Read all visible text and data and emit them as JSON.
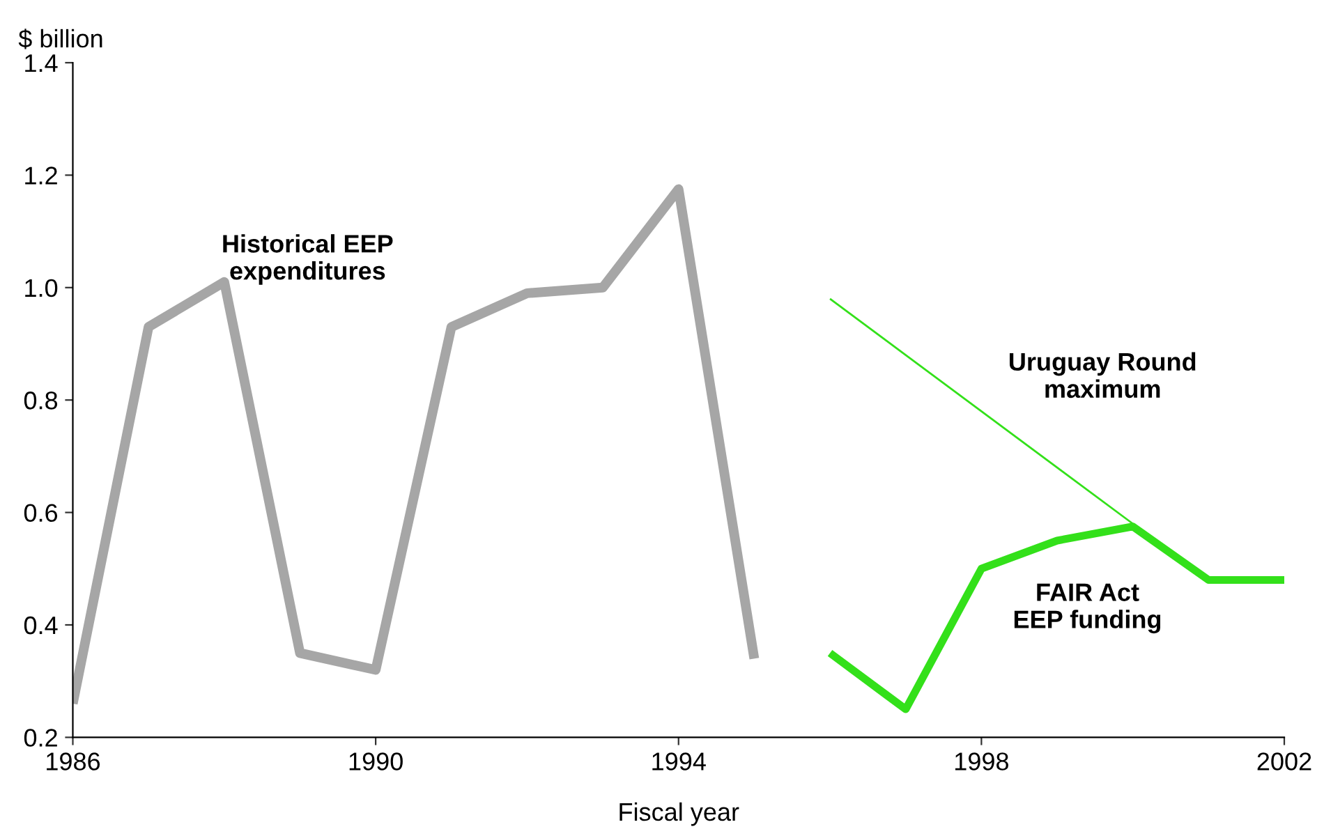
{
  "chart_data": {
    "type": "line",
    "ylabel": "$ billion",
    "xlabel": "Fiscal year",
    "xlim": [
      1986,
      2002
    ],
    "xticks": [
      1986,
      1990,
      1994,
      1998,
      2002
    ],
    "ylim": [
      0.2,
      1.4
    ],
    "yticks": [
      {
        "value": 0.2,
        "label": "0.2"
      },
      {
        "value": 0.4,
        "label": "0.4"
      },
      {
        "value": 0.6,
        "label": "0.6"
      },
      {
        "value": 0.8,
        "label": "0.8"
      },
      {
        "value": 1.0,
        "label": "1.0"
      },
      {
        "value": 1.2,
        "label": "1.2"
      },
      {
        "value": 1.4,
        "label": "1.4"
      }
    ],
    "grid": false,
    "legend": false,
    "marker": "none",
    "line_style": "solid",
    "series": [
      {
        "name": "Historical EEP\nexpenditures",
        "color": "#a6a6a6",
        "x": [
          1986,
          1987,
          1988,
          1989,
          1990,
          1991,
          1992,
          1993,
          1994,
          1995
        ],
        "values": [
          0.26,
          0.93,
          1.01,
          0.35,
          0.32,
          0.93,
          0.99,
          1.0,
          1.175,
          0.34
        ]
      },
      {
        "name": "Uruguay Round\nmaximum",
        "color": "#33e01a",
        "x": [
          1996,
          2000
        ],
        "values": [
          0.98,
          0.58
        ]
      },
      {
        "name": "FAIR Act\nEEP funding",
        "color": "#33e01a",
        "x": [
          1996,
          1997,
          1998,
          1999,
          2000,
          2001,
          2002
        ],
        "values": [
          0.35,
          0.25,
          0.5,
          0.55,
          0.575,
          0.48,
          0.48
        ]
      }
    ]
  }
}
